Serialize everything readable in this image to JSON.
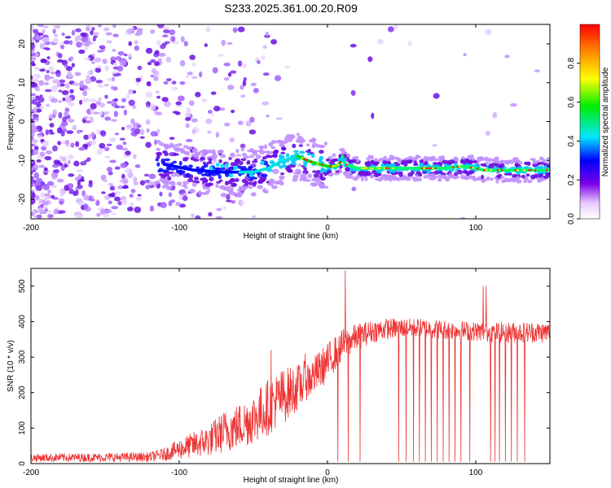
{
  "title": "S233.2025.361.00.20.R09",
  "chart_data": [
    {
      "type": "heatmap",
      "xlabel": "Height of straight line (km)",
      "ylabel": "Frequency (Hz)",
      "xlim": [
        -200,
        150
      ],
      "ylim": [
        -25,
        25
      ],
      "x_ticks": [
        -200,
        -100,
        0,
        100
      ],
      "y_ticks": [
        -20,
        -10,
        0,
        10,
        20
      ],
      "ridge": {
        "x": [
          -110,
          -90,
          -70,
          -50,
          -40,
          -30,
          -20,
          -10,
          0,
          5,
          8,
          10,
          12,
          20,
          40,
          60,
          80,
          90,
          100,
          105,
          120,
          140,
          150
        ],
        "freq": [
          -11,
          -12.5,
          -13,
          -13,
          -12,
          -10,
          -9,
          -10.5,
          -11.5,
          -11.5,
          -11,
          -9,
          -11,
          -12,
          -12,
          -12,
          -12,
          -11.5,
          -12,
          -12.5,
          -12.5,
          -12.5,
          -12.5
        ]
      },
      "colorbar": {
        "label": "Normalized spectral amplitude",
        "ticks": [
          0.0,
          0.2,
          0.4,
          0.6,
          0.8
        ],
        "range": [
          0,
          1
        ]
      }
    },
    {
      "type": "line",
      "xlabel": "Height of straight line (km)",
      "ylabel": "SNR (10 * v/v)",
      "xlim": [
        -200,
        150
      ],
      "ylim": [
        0,
        550
      ],
      "x_ticks": [
        -200,
        -100,
        0,
        100
      ],
      "y_ticks": [
        0,
        100,
        200,
        300,
        400,
        500
      ],
      "color": "#ee3333",
      "envelope": {
        "x": [
          -200,
          -150,
          -120,
          -110,
          -100,
          -90,
          -80,
          -70,
          -60,
          -50,
          -40,
          -30,
          -20,
          -10,
          0,
          10,
          20,
          30,
          40,
          50,
          60,
          80,
          100,
          120,
          150
        ],
        "lo": [
          5,
          5,
          5,
          8,
          12,
          15,
          20,
          30,
          40,
          55,
          80,
          110,
          150,
          190,
          230,
          290,
          320,
          340,
          350,
          355,
          355,
          350,
          345,
          340,
          340
        ],
        "hi": [
          28,
          30,
          32,
          45,
          70,
          90,
          110,
          150,
          170,
          200,
          240,
          270,
          280,
          300,
          340,
          380,
          395,
          405,
          410,
          410,
          410,
          405,
          400,
          400,
          400
        ]
      },
      "spikes": [
        {
          "x": 12,
          "y": 545
        },
        {
          "x": 105,
          "y": 500
        },
        {
          "x": 107,
          "y": 500
        },
        {
          "x": -15,
          "y": 310
        },
        {
          "x": -38,
          "y": 320
        }
      ],
      "dropouts": [
        7,
        14,
        22,
        48,
        53,
        58,
        62,
        66,
        70,
        74,
        78,
        82,
        86,
        90,
        96,
        110,
        113,
        116,
        120,
        124,
        128,
        133
      ]
    }
  ]
}
